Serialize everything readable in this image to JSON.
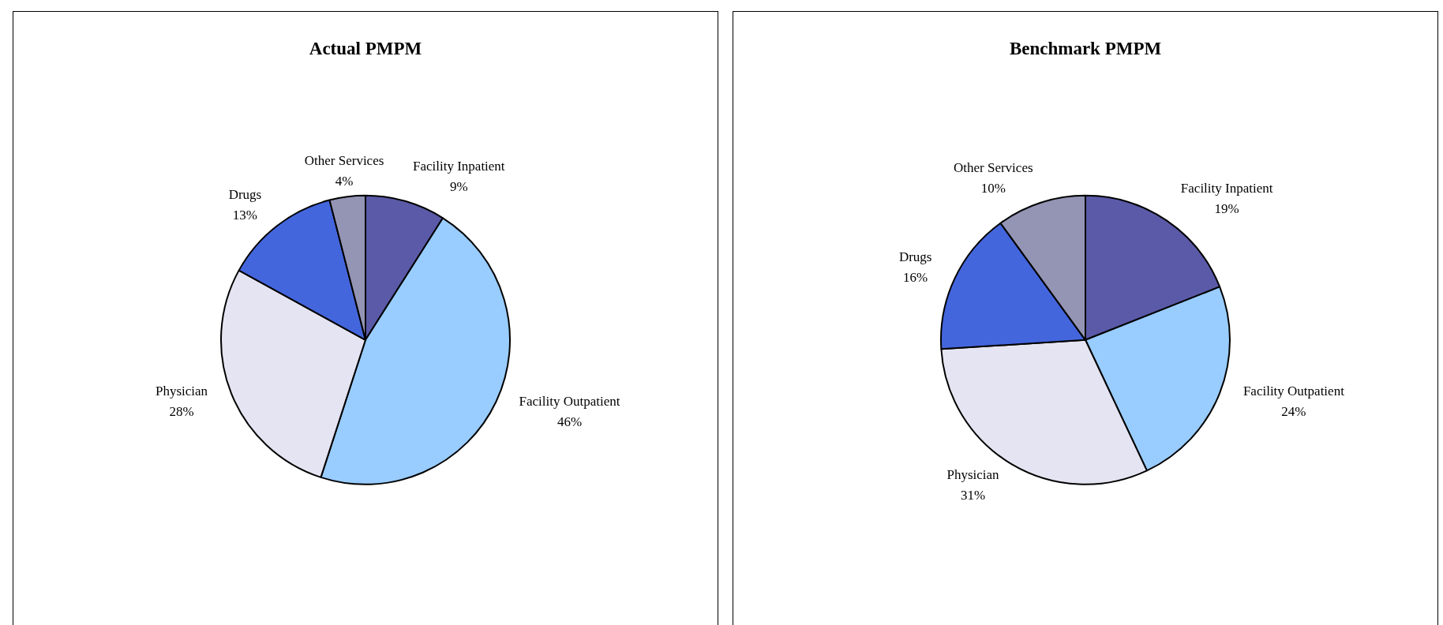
{
  "chart_data": [
    {
      "type": "pie",
      "title": "Actual PMPM",
      "categories": [
        "Facility Inpatient",
        "Facility Outpatient",
        "Physician",
        "Drugs",
        "Other Services"
      ],
      "values": [
        9,
        46,
        28,
        13,
        4
      ],
      "value_labels": [
        "9%",
        "46%",
        "28%",
        "13%",
        "4%"
      ],
      "colors": [
        "#5a5aa8",
        "#99ccff",
        "#e4e4f2",
        "#4466dd",
        "#9494b4"
      ],
      "legend": false
    },
    {
      "type": "pie",
      "title": "Benchmark PMPM",
      "categories": [
        "Facility Inpatient",
        "Facility Outpatient",
        "Physician",
        "Drugs",
        "Other Services"
      ],
      "values": [
        19,
        24,
        31,
        16,
        10
      ],
      "value_labels": [
        "19%",
        "24%",
        "31%",
        "16%",
        "10%"
      ],
      "colors": [
        "#5a5aa8",
        "#99ccff",
        "#e4e4f2",
        "#4466dd",
        "#9494b4"
      ],
      "legend": false
    }
  ]
}
